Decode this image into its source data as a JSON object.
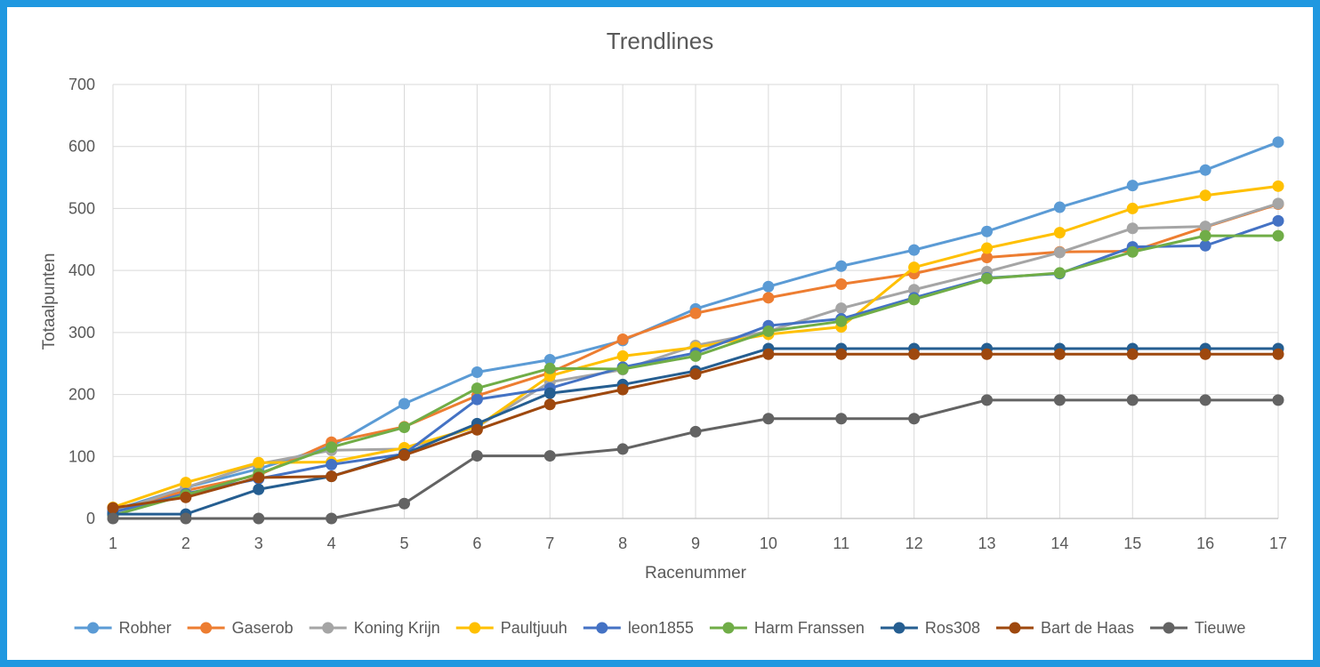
{
  "chart_data": {
    "type": "line",
    "title": "Trendlines",
    "xlabel": "Racenummer",
    "ylabel": "Totaalpunten",
    "x": [
      1,
      2,
      3,
      4,
      5,
      6,
      7,
      8,
      9,
      10,
      11,
      12,
      13,
      14,
      15,
      16,
      17
    ],
    "xlim": [
      1,
      17
    ],
    "ylim": [
      0,
      700
    ],
    "yticks": [
      0,
      100,
      200,
      300,
      400,
      500,
      600,
      700
    ],
    "grid": "vertical and horizontal",
    "legend_position": "bottom",
    "series": [
      {
        "name": "Robher",
        "color": "#5b9bd5",
        "values": [
          13,
          50,
          80,
          117,
          185,
          236,
          256,
          287,
          338,
          374,
          407,
          433,
          463,
          502,
          537,
          562,
          607
        ]
      },
      {
        "name": "Gaserob",
        "color": "#ed7d31",
        "values": [
          10,
          45,
          70,
          123,
          148,
          198,
          235,
          289,
          331,
          356,
          378,
          395,
          421,
          430,
          431,
          470,
          507
        ]
      },
      {
        "name": "Koning Krijn",
        "color": "#a5a5a5",
        "values": [
          10,
          50,
          88,
          110,
          112,
          148,
          220,
          240,
          279,
          302,
          339,
          369,
          398,
          429,
          468,
          471,
          508
        ]
      },
      {
        "name": "Paultjuuh",
        "color": "#ffc000",
        "values": [
          18,
          58,
          90,
          91,
          114,
          148,
          230,
          262,
          276,
          297,
          309,
          405,
          436,
          461,
          500,
          521,
          536
        ]
      },
      {
        "name": "leon1855",
        "color": "#4472c4",
        "values": [
          10,
          40,
          64,
          87,
          104,
          192,
          210,
          244,
          267,
          311,
          322,
          356,
          388,
          395,
          438,
          440,
          480
        ]
      },
      {
        "name": "Harm Franssen",
        "color": "#70ad47",
        "values": [
          5,
          38,
          72,
          115,
          147,
          210,
          242,
          241,
          262,
          302,
          318,
          353,
          387,
          396,
          430,
          456,
          456
        ]
      },
      {
        "name": "Ros308",
        "color": "#255e91",
        "values": [
          7,
          7,
          47,
          68,
          104,
          153,
          202,
          216,
          238,
          274,
          274,
          274,
          274,
          274,
          274,
          274,
          274
        ]
      },
      {
        "name": "Bart de Haas",
        "color": "#9e480e",
        "values": [
          17,
          34,
          66,
          68,
          102,
          143,
          184,
          208,
          233,
          265,
          265,
          265,
          265,
          265,
          265,
          265,
          265
        ]
      },
      {
        "name": "Tieuwe",
        "color": "#636363",
        "values": [
          0,
          0,
          0,
          0,
          24,
          101,
          101,
          112,
          140,
          161,
          161,
          161,
          191,
          191,
          191,
          191,
          191
        ]
      }
    ]
  }
}
